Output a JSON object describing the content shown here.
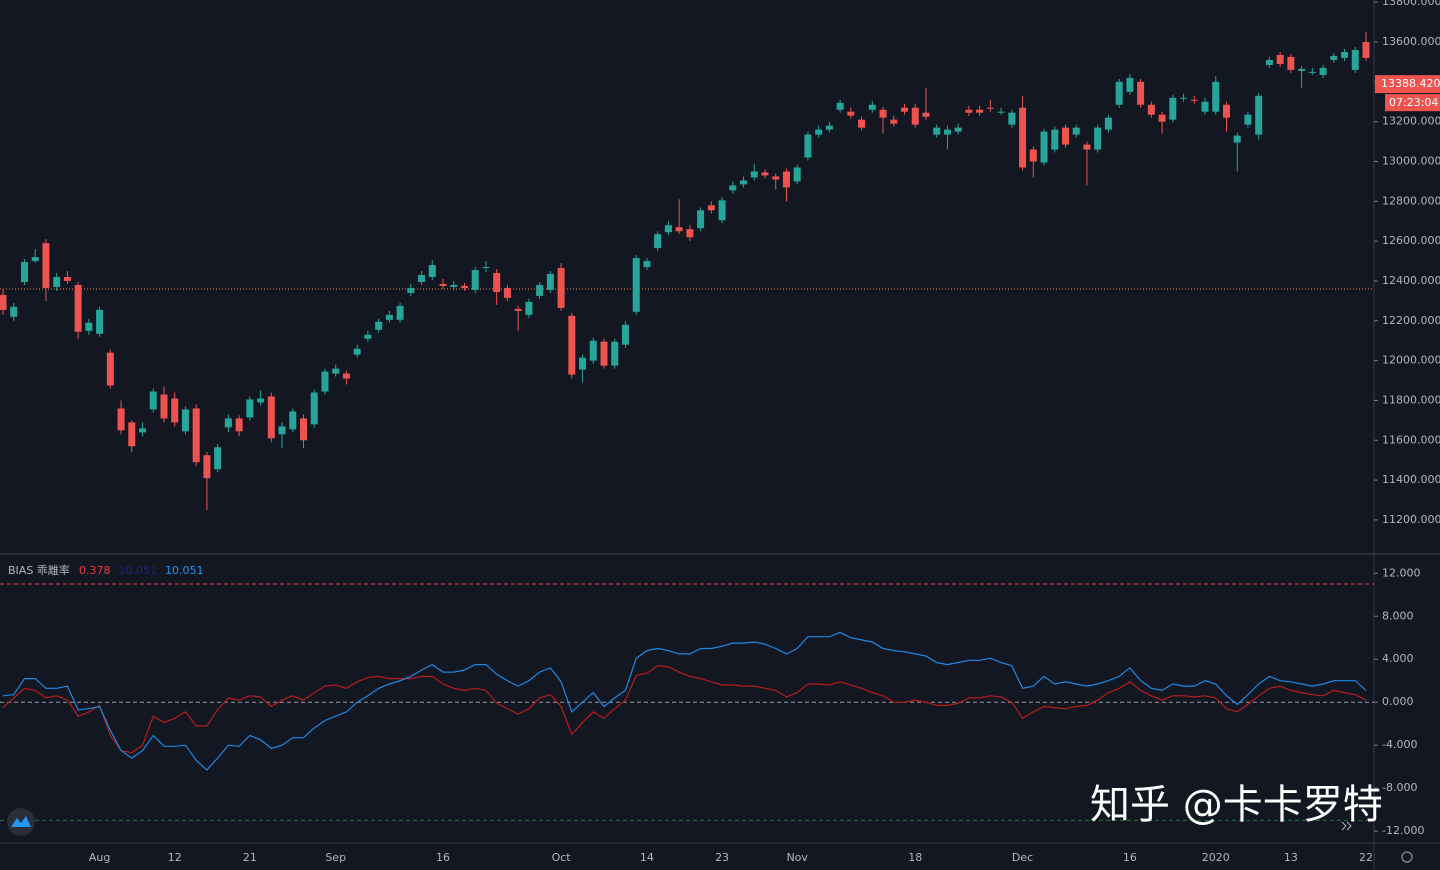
{
  "chart_data": [
    {
      "type": "candlestick",
      "categories": [
        null,
        null,
        null,
        null,
        null,
        null,
        null,
        null,
        null,
        "Aug",
        null,
        null,
        null,
        null,
        null,
        null,
        "12",
        null,
        null,
        null,
        null,
        null,
        null,
        "21",
        null,
        null,
        null,
        null,
        null,
        null,
        null,
        "Sep",
        null,
        null,
        null,
        null,
        null,
        null,
        null,
        null,
        null,
        "16",
        null,
        null,
        null,
        null,
        null,
        null,
        null,
        null,
        null,
        null,
        "Oct",
        null,
        null,
        null,
        null,
        null,
        null,
        null,
        "14",
        null,
        null,
        null,
        null,
        null,
        null,
        "23",
        null,
        null,
        null,
        null,
        null,
        null,
        "Nov",
        null,
        null,
        null,
        null,
        null,
        null,
        null,
        null,
        null,
        null,
        "18",
        null,
        null,
        null,
        null,
        null,
        null,
        null,
        null,
        null,
        "Dec",
        null,
        null,
        null,
        null,
        null,
        null,
        null,
        null,
        null,
        "16",
        null,
        null,
        null,
        null,
        null,
        null,
        null,
        "2020",
        null,
        null,
        null,
        null,
        null,
        null,
        "13",
        null,
        null,
        null,
        null,
        null,
        null,
        "22"
      ],
      "open": [
        12330,
        12220,
        12395,
        12500,
        12590,
        12370,
        12420,
        12380,
        12150,
        12135,
        12040,
        11760,
        11690,
        11640,
        11755,
        11830,
        11810,
        11645,
        11760,
        11525,
        11455,
        11665,
        11710,
        11715,
        11790,
        11820,
        11630,
        11655,
        11710,
        11680,
        11845,
        11935,
        11935,
        12030,
        12110,
        12155,
        12205,
        12205,
        12340,
        12395,
        12420,
        12385,
        12370,
        12375,
        12355,
        12465,
        12440,
        12365,
        12260,
        12230,
        12325,
        12355,
        12465,
        12225,
        11955,
        12000,
        12095,
        11975,
        12080,
        12245,
        12470,
        12565,
        12645,
        12670,
        12660,
        12665,
        12780,
        12705,
        12855,
        12885,
        12920,
        12945,
        12925,
        12950,
        12900,
        13020,
        13135,
        13160,
        13260,
        13250,
        13210,
        13260,
        13260,
        13210,
        13270,
        13270,
        13245,
        13135,
        13135,
        13150,
        13260,
        13260,
        13270,
        13250,
        13185,
        13270,
        13060,
        12995,
        13060,
        13170,
        13135,
        13085,
        13060,
        13160,
        13285,
        13350,
        13400,
        13285,
        13235,
        13210,
        13315,
        13310,
        13250,
        13250,
        13285,
        13095,
        13185,
        13135,
        13485,
        13535,
        13525,
        13455,
        13450,
        13435,
        13510,
        13520,
        13460,
        13600
      ],
      "high": [
        12360,
        12290,
        12510,
        12560,
        12610,
        12440,
        12450,
        12395,
        12210,
        12270,
        12055,
        11800,
        11700,
        11690,
        11860,
        11870,
        11840,
        11770,
        11780,
        11540,
        11580,
        11730,
        11725,
        11820,
        11850,
        11840,
        11690,
        11760,
        11730,
        11855,
        11960,
        11980,
        11950,
        12080,
        12150,
        12210,
        12250,
        12290,
        12385,
        12450,
        12505,
        12410,
        12400,
        12390,
        12470,
        12500,
        12460,
        12380,
        12275,
        12310,
        12395,
        12450,
        12490,
        12240,
        12030,
        12115,
        12110,
        12110,
        12200,
        12530,
        12515,
        12650,
        12700,
        12810,
        12680,
        12770,
        12800,
        12820,
        12900,
        12925,
        12990,
        12960,
        12940,
        12965,
        12985,
        13150,
        13180,
        13200,
        13310,
        13270,
        13225,
        13305,
        13275,
        13230,
        13290,
        13290,
        13370,
        13185,
        13180,
        13190,
        13280,
        13280,
        13310,
        13270,
        13260,
        13330,
        13075,
        13165,
        13175,
        13185,
        13185,
        13100,
        13185,
        13235,
        13415,
        13440,
        13415,
        13300,
        13250,
        13335,
        13340,
        13330,
        13320,
        13430,
        13300,
        13145,
        13250,
        13345,
        13525,
        13550,
        13540,
        13480,
        13470,
        13485,
        13545,
        13565,
        13575,
        13650
      ],
      "low": [
        12230,
        12200,
        12380,
        12490,
        12300,
        12350,
        12385,
        12110,
        12130,
        12120,
        11860,
        11630,
        11540,
        11620,
        11740,
        11690,
        11670,
        11630,
        11470,
        11250,
        11440,
        11640,
        11620,
        11700,
        11775,
        11590,
        11560,
        11640,
        11560,
        11665,
        11830,
        11920,
        11880,
        12015,
        12095,
        12140,
        12190,
        12190,
        12325,
        12380,
        12405,
        12360,
        12355,
        12350,
        12340,
        12445,
        12280,
        12300,
        12150,
        12215,
        12310,
        12340,
        12250,
        11910,
        11890,
        11985,
        11960,
        11960,
        12065,
        12230,
        12455,
        12550,
        12630,
        12635,
        12600,
        12650,
        12740,
        12690,
        12840,
        12870,
        12905,
        12915,
        12860,
        12800,
        12885,
        13005,
        13120,
        13145,
        13245,
        13215,
        13155,
        13245,
        13140,
        13175,
        13235,
        13170,
        13210,
        13120,
        13060,
        13135,
        13230,
        13230,
        13250,
        13235,
        13170,
        12955,
        12920,
        12980,
        13045,
        13070,
        13120,
        12880,
        13045,
        13145,
        13270,
        13335,
        13270,
        13220,
        13140,
        13195,
        13300,
        13290,
        13235,
        13235,
        13150,
        12950,
        13170,
        13110,
        13470,
        13475,
        13445,
        13370,
        13435,
        13420,
        13495,
        13505,
        13445,
        13505
      ],
      "close": [
        12255,
        12270,
        12495,
        12520,
        12365,
        12420,
        12400,
        12145,
        12190,
        12255,
        11875,
        11650,
        11570,
        11660,
        11845,
        11710,
        11690,
        11755,
        11490,
        11410,
        11565,
        11710,
        11645,
        11805,
        11810,
        11610,
        11670,
        11745,
        11600,
        11840,
        11945,
        11960,
        11910,
        12060,
        12130,
        12195,
        12230,
        12275,
        12365,
        12430,
        12480,
        12375,
        12380,
        12365,
        12455,
        12470,
        12345,
        12315,
        12250,
        12295,
        12380,
        12435,
        12265,
        11930,
        12015,
        12100,
        11975,
        12095,
        12180,
        12515,
        12500,
        12635,
        12680,
        12650,
        12620,
        12755,
        12755,
        12805,
        12880,
        12905,
        12950,
        12930,
        12910,
        12870,
        12970,
        13135,
        13160,
        13180,
        13295,
        13230,
        13170,
        13285,
        13220,
        13190,
        13250,
        13185,
        13225,
        13170,
        13160,
        13170,
        13245,
        13245,
        13265,
        13250,
        13245,
        12970,
        13000,
        13150,
        13160,
        13085,
        13170,
        13060,
        13170,
        13220,
        13400,
        13420,
        13285,
        13235,
        13200,
        13320,
        13320,
        13305,
        13300,
        13400,
        13220,
        13130,
        13235,
        13330,
        13510,
        13490,
        13460,
        13465,
        13450,
        13470,
        13530,
        13550,
        13560,
        13520
      ],
      "up_color": "#26a69a",
      "down_color": "#ef5350",
      "ylim": [
        11034,
        13811
      ],
      "yticks": [
        {
          "value": 11200,
          "label": "11200.000"
        },
        {
          "value": 11400,
          "label": "11400.000"
        },
        {
          "value": 11600,
          "label": "11600.000"
        },
        {
          "value": 11800,
          "label": "11800.000"
        },
        {
          "value": 12000,
          "label": "12000.000"
        },
        {
          "value": 12200,
          "label": "12200.000"
        },
        {
          "value": 12400,
          "label": "12400.000"
        },
        {
          "value": 12600,
          "label": "12600.000"
        },
        {
          "value": 12800,
          "label": "12800.000"
        },
        {
          "value": 13000,
          "label": "13000.000"
        },
        {
          "value": 13200,
          "label": "13200.000"
        },
        {
          "value": 13400,
          "label": "13400.000"
        },
        {
          "value": 13600,
          "label": "13600.000"
        },
        {
          "value": 13800,
          "label": "13800.000"
        }
      ],
      "hline": 12360,
      "price_label": {
        "value": 13388.42,
        "label": "13388.420"
      },
      "countdown": "07:23:04"
    },
    {
      "type": "line",
      "title": "BIAS 乖離率",
      "legend_values": [
        {
          "label": "0.378",
          "color": "#f23645"
        },
        {
          "label": "10.051",
          "color": "#1a237e"
        },
        {
          "label": "10.051",
          "color": "#2196f3"
        }
      ],
      "series": [
        {
          "color": "#b71c1c",
          "values": [
            -0.5,
            0.4,
            1.3,
            1.1,
            0.4,
            0.6,
            0.2,
            -1.3,
            -0.9,
            -0.3,
            -3.1,
            -4.5,
            -4.7,
            -4,
            -1.3,
            -1.9,
            -1.5,
            -0.9,
            -2.2,
            -2.2,
            -0.7,
            0.4,
            0.2,
            0.6,
            0.5,
            -0.4,
            0.2,
            0.6,
            0.2,
            0.9,
            1.5,
            1.6,
            1.3,
            1.9,
            2.3,
            2.4,
            2.2,
            2.2,
            2.2,
            2.4,
            2.4,
            1.7,
            1.3,
            1.1,
            1.3,
            1.1,
            -0.1,
            -0.6,
            -1.1,
            -0.6,
            0.4,
            0.7,
            -0.4,
            -3,
            -1.9,
            -0.9,
            -1.5,
            -0.6,
            0.2,
            2.5,
            2.7,
            3.4,
            3.3,
            2.8,
            2.4,
            2.2,
            1.9,
            1.6,
            1.6,
            1.5,
            1.5,
            1.3,
            1.1,
            0.5,
            0.9,
            1.7,
            1.7,
            1.6,
            1.9,
            1.6,
            1.3,
            0.9,
            0.6,
            0,
            0,
            0.2,
            0,
            -0.3,
            -0.3,
            -0.1,
            0.4,
            0.4,
            0.6,
            0.5,
            0,
            -1.5,
            -0.9,
            -0.4,
            -0.5,
            -0.6,
            -0.4,
            -0.3,
            0.2,
            0.9,
            1.3,
            1.9,
            1.1,
            0.6,
            0.2,
            0.6,
            0.6,
            0.5,
            0.6,
            0.4,
            -0.6,
            -0.9,
            -0.2,
            0.6,
            1.3,
            1.5,
            1.1,
            0.9,
            0.7,
            0.6,
            1.1,
            0.9,
            0.7,
            0.2
          ]
        },
        {
          "color": "#1e88e5",
          "values": [
            0.6,
            0.7,
            2.2,
            2.2,
            1.3,
            1.3,
            1.5,
            -0.7,
            -0.6,
            -0.4,
            -2.6,
            -4.5,
            -5.2,
            -4.5,
            -3.1,
            -4.1,
            -4.1,
            -4,
            -5.4,
            -6.3,
            -5.2,
            -4,
            -4.1,
            -3.1,
            -3.5,
            -4.3,
            -4,
            -3.3,
            -3.3,
            -2.4,
            -1.7,
            -1.3,
            -0.9,
            0,
            0.6,
            1.3,
            1.7,
            2,
            2.4,
            3,
            3.5,
            2.8,
            2.8,
            3,
            3.5,
            3.5,
            2.6,
            2,
            1.5,
            2,
            2.8,
            3.2,
            1.9,
            -0.9,
            0,
            0.9,
            -0.4,
            0.4,
            1.1,
            4.1,
            4.8,
            5,
            4.8,
            4.5,
            4.5,
            5,
            5,
            5.2,
            5.5,
            5.5,
            5.6,
            5.4,
            5,
            4.5,
            5,
            6.1,
            6.1,
            6.1,
            6.5,
            6,
            5.8,
            5.6,
            5,
            4.8,
            4.7,
            4.5,
            4.3,
            3.7,
            3.5,
            3.7,
            3.9,
            3.9,
            4.1,
            3.7,
            3.4,
            1.3,
            1.5,
            2.4,
            1.7,
            1.9,
            1.7,
            1.5,
            1.7,
            2,
            2.4,
            3.2,
            2,
            1.3,
            1.1,
            1.7,
            1.5,
            1.5,
            2,
            1.7,
            0.6,
            -0.2,
            0.7,
            1.7,
            2.4,
            2,
            1.9,
            1.7,
            1.5,
            1.7,
            2,
            2,
            2,
            1.1
          ]
        }
      ],
      "levels": [
        {
          "value": 11,
          "color": "#f23645"
        },
        {
          "value": 0,
          "color": "#9598a1"
        },
        {
          "value": -11,
          "color": "#1b7a3a"
        }
      ],
      "ylim": [
        -13.1,
        13.7
      ],
      "yticks": [
        {
          "value": 12,
          "label": "12.000"
        },
        {
          "value": 8,
          "label": "8.000"
        },
        {
          "value": 4,
          "label": "4.000"
        },
        {
          "value": 0,
          "label": "0.000"
        },
        {
          "value": -4,
          "label": "-4.000"
        },
        {
          "value": -8,
          "label": "-8.000"
        },
        {
          "value": -12,
          "label": "-12.000"
        }
      ]
    }
  ],
  "watermark": "知乎 @卡卡罗特"
}
